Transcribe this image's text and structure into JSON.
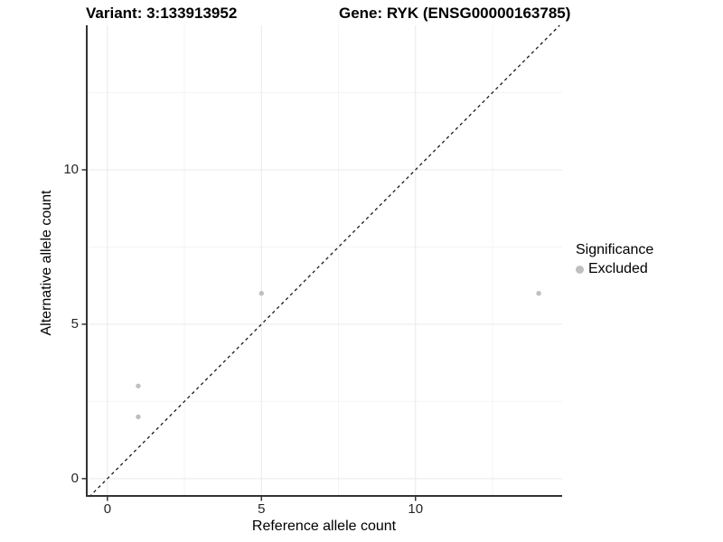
{
  "chart_data": {
    "type": "scatter",
    "title_left": "Variant: 3:133913952",
    "title_right": "Gene: RYK (ENSG00000163785)",
    "xlabel": "Reference allele count",
    "ylabel": "Alternative allele count",
    "xlim": [
      -0.7,
      14.76
    ],
    "ylim": [
      -0.59,
      14.68
    ],
    "x_ticks": [
      {
        "value": 0,
        "label": "0"
      },
      {
        "value": 5,
        "label": "5"
      },
      {
        "value": 10,
        "label": "10"
      }
    ],
    "y_ticks": [
      {
        "value": 0,
        "label": "0"
      },
      {
        "value": 5,
        "label": "5"
      },
      {
        "value": 10,
        "label": "10"
      }
    ],
    "x_minor_ticks": [
      2.5,
      7.5,
      12.5
    ],
    "y_minor_ticks": [
      2.5,
      7.5,
      12.5
    ],
    "grid": {
      "major": true,
      "minor": true
    },
    "series": [
      {
        "name": "Excluded",
        "marker": "circle",
        "color": "#bfbfbf",
        "points": [
          [
            1,
            3
          ],
          [
            1,
            2
          ],
          [
            5,
            6
          ],
          [
            14,
            6
          ]
        ]
      }
    ],
    "reference_line": {
      "type": "identity",
      "slope": 1,
      "intercept": 0,
      "linestyle": "dashed",
      "color": "#1a1a1a"
    },
    "legend": {
      "title": "Significance",
      "position": "right",
      "items": [
        {
          "label": "Excluded",
          "color": "#bfbfbf"
        }
      ]
    },
    "colors": {
      "background": "#ffffff",
      "grid_major": "#e9e9e9",
      "grid_minor": "#f4f4f4",
      "axis_line": "#333333",
      "tick_label": "#262626",
      "title": "#000000"
    }
  }
}
